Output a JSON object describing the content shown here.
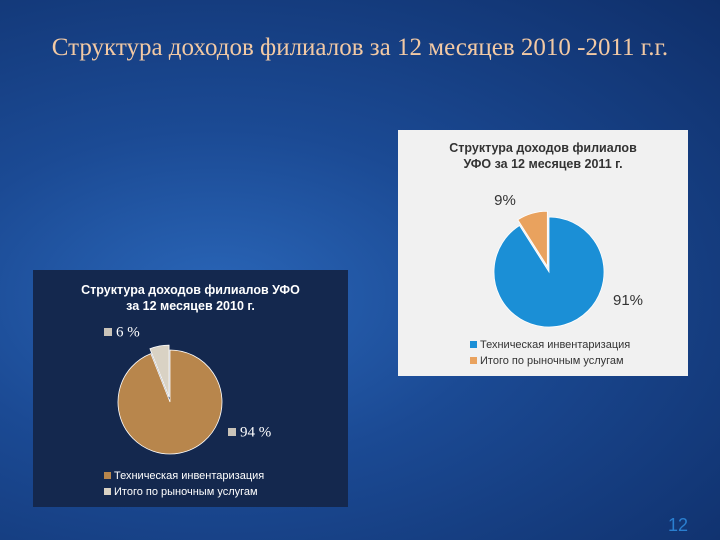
{
  "slide": {
    "title": "Структура доходов филиалов за 12 месяцев 2010 -2011 г.г.",
    "page_number": "12"
  },
  "chart_data": [
    {
      "type": "pie",
      "title": "Структура доходов филиалов УФО за 12 месяцев 2011 г.",
      "categories": [
        "Техническая инвентаризация",
        "Итого по рыночным услугам"
      ],
      "values": [
        91,
        9
      ],
      "value_labels": [
        "91%",
        "9%"
      ],
      "colors": [
        "#1b8fd6",
        "#e9a25e"
      ]
    },
    {
      "type": "pie",
      "title": "Структура доходов филиалов УФО за 12 месяцев 2010 г.",
      "categories": [
        "Техническая инвентаризация",
        "Итого по рыночным услугам"
      ],
      "values": [
        94,
        6
      ],
      "value_labels": [
        "94 %",
        "6 %"
      ],
      "colors": [
        "#b8864c",
        "#d9d2c4"
      ]
    }
  ]
}
